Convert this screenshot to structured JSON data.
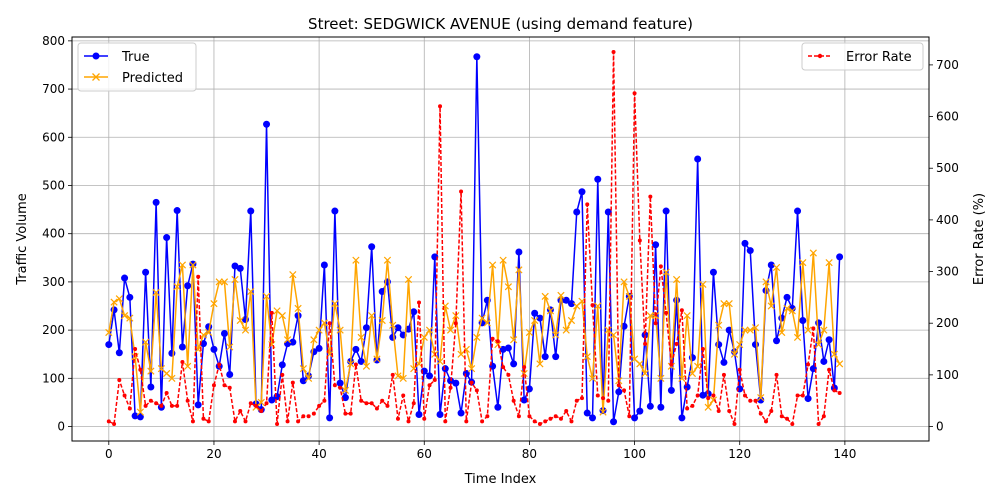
{
  "chart_data": {
    "type": "line",
    "title": "Street: SEDGWICK AVENUE (using demand feature)",
    "xlabel": "Time Index",
    "ylabel": "Traffic Volume",
    "y2label": "Error Rate (%)",
    "xlim": [
      -7,
      156
    ],
    "ylim": [
      -30,
      808
    ],
    "y2lim": [
      -28,
      754
    ],
    "xticks": [
      0,
      20,
      40,
      60,
      80,
      100,
      120,
      140
    ],
    "yticks": [
      0,
      100,
      200,
      300,
      400,
      500,
      600,
      700,
      800
    ],
    "y2ticks": [
      0,
      100,
      200,
      300,
      400,
      500,
      600,
      700
    ],
    "grid": true,
    "legend_left_placement": "upper-left",
    "legend_right_placement": "upper-right",
    "series": [
      {
        "name": "True",
        "axis": "left",
        "color": "#0000ff",
        "marker": "circle",
        "values": [
          170,
          242,
          153,
          308,
          268,
          22,
          20,
          320,
          82,
          465,
          40,
          392,
          152,
          448,
          165,
          292,
          337,
          45,
          172,
          207,
          160,
          125,
          193,
          108,
          333,
          328,
          222,
          447,
          47,
          35,
          627,
          55,
          62,
          128,
          172,
          175,
          230,
          95,
          105,
          155,
          162,
          335,
          18,
          447,
          90,
          60,
          135,
          160,
          135,
          205,
          373,
          138,
          280,
          300,
          185,
          205,
          190,
          202,
          238,
          25,
          115,
          105,
          352,
          25,
          120,
          95,
          90,
          28,
          110,
          92,
          767,
          215,
          262,
          125,
          40,
          160,
          163,
          130,
          362,
          55,
          78,
          235,
          225,
          145,
          242,
          145,
          262,
          262,
          255,
          445,
          487,
          28,
          18,
          513,
          33,
          445,
          10,
          72,
          208,
          270,
          18,
          32,
          190,
          42,
          377,
          40,
          447,
          75,
          262,
          18,
          82,
          143,
          555,
          65,
          68,
          320,
          170,
          133,
          200,
          155,
          78,
          380,
          365,
          170,
          55,
          282,
          335,
          178,
          225,
          268,
          245,
          447,
          220,
          58,
          120,
          215,
          135,
          180,
          80,
          352
        ]
      },
      {
        "name": "Predicted",
        "axis": "left",
        "color": "#ffa500",
        "marker": "x",
        "values": [
          195,
          258,
          265,
          230,
          225,
          145,
          30,
          175,
          115,
          278,
          120,
          110,
          100,
          290,
          335,
          125,
          335,
          160,
          190,
          195,
          255,
          300,
          300,
          165,
          305,
          220,
          200,
          280,
          40,
          50,
          270,
          170,
          240,
          230,
          180,
          315,
          245,
          120,
          100,
          180,
          200,
          215,
          150,
          255,
          200,
          75,
          130,
          345,
          185,
          125,
          230,
          140,
          220,
          345,
          210,
          105,
          100,
          305,
          120,
          130,
          185,
          200,
          150,
          135,
          250,
          200,
          230,
          150,
          160,
          120,
          185,
          225,
          215,
          335,
          170,
          345,
          290,
          180,
          325,
          110,
          195,
          220,
          130,
          270,
          240,
          190,
          272,
          200,
          220,
          250,
          260,
          145,
          100,
          250,
          30,
          200,
          190,
          95,
          300,
          270,
          140,
          130,
          110,
          230,
          230,
          100,
          320,
          125,
          305,
          100,
          230,
          110,
          125,
          295,
          40,
          55,
          210,
          255,
          255,
          150,
          170,
          200,
          200,
          205,
          60,
          300,
          250,
          330,
          195,
          245,
          240,
          185,
          340,
          200,
          360,
          170,
          200,
          340,
          150,
          130
        ]
      },
      {
        "name": "Error Rate",
        "axis": "right",
        "color": "#ff0000",
        "marker": "dot",
        "dashed": true,
        "values": [
          10,
          5,
          90,
          60,
          35,
          150,
          110,
          40,
          50,
          45,
          40,
          65,
          40,
          40,
          125,
          50,
          10,
          290,
          15,
          10,
          80,
          120,
          80,
          75,
          10,
          30,
          10,
          45,
          40,
          30,
          45,
          220,
          5,
          100,
          10,
          85,
          10,
          20,
          20,
          25,
          40,
          50,
          200,
          80,
          75,
          25,
          25,
          120,
          50,
          45,
          45,
          35,
          50,
          40,
          100,
          15,
          60,
          10,
          45,
          240,
          15,
          80,
          90,
          620,
          10,
          75,
          200,
          455,
          10,
          85,
          70,
          10,
          20,
          170,
          165,
          115,
          100,
          50,
          20,
          115,
          20,
          10,
          5,
          10,
          15,
          20,
          15,
          30,
          10,
          50,
          55,
          430,
          235,
          60,
          55,
          50,
          725,
          80,
          70,
          20,
          645,
          360,
          160,
          445,
          200,
          310,
          220,
          120,
          160,
          225,
          35,
          40,
          60,
          150,
          55,
          60,
          30,
          100,
          30,
          5,
          110,
          60,
          50,
          50,
          25,
          10,
          30,
          100,
          20,
          15,
          5,
          60,
          60,
          120,
          190,
          5,
          20,
          110,
          70,
          65
        ]
      }
    ]
  }
}
